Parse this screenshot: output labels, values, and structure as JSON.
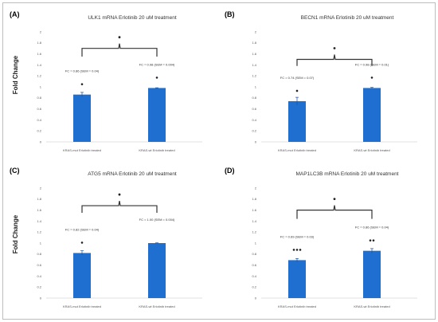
{
  "figure_ylabel": "Fold Change",
  "colors": {
    "bar": "#1f6fd0",
    "axis": "#d9d9d9",
    "bracket": "#333333"
  },
  "chart_data": [
    {
      "panel": "(A)",
      "type": "bar",
      "title": "ULK1 mRNA Erlotinib 20 uM treatment",
      "categories": [
        "KRAS-mut Erlotinib treated",
        "KRAS-wt Erlotinib treated"
      ],
      "values": [
        0.86,
        0.98
      ],
      "errors": [
        0.04,
        0.004
      ],
      "labels": [
        "FC = 0.86 (SEM = 0.04)",
        "FC = 0.98 (SEM = 0.004)"
      ],
      "bar_markers": [
        "•",
        "•"
      ],
      "bracket_marker": "•",
      "bracket_top": 1.7,
      "bracket_legs": 1.55,
      "ylim": [
        0,
        2
      ],
      "yticks": [
        "0",
        "0.2",
        "0.4",
        "0.6",
        "0.8",
        "1",
        "1.2",
        "1.4",
        "1.6",
        "1.8",
        "2"
      ]
    },
    {
      "panel": "(B)",
      "type": "bar",
      "title": "BECN1 mRNA Erlotinib 20 uM  treatment",
      "categories": [
        "KRAS-mut Erlotinib treated",
        "KRAS-wt Erlotinib treated"
      ],
      "values": [
        0.74,
        0.98
      ],
      "errors": [
        0.07,
        0.01
      ],
      "labels": [
        "FC = 0.74 (SEM = 0.07)",
        "FC = 0.98 (SEM = 0.01)"
      ],
      "bar_markers": [
        "•",
        "•"
      ],
      "bracket_marker": "•",
      "bracket_top": 1.5,
      "bracket_legs": 1.38,
      "ylim": [
        0,
        2
      ],
      "yticks": [
        "0",
        "0.2",
        "0.4",
        "0.6",
        "0.8",
        "1",
        "1.2",
        "1.4",
        "1.6",
        "1.8",
        "2"
      ]
    },
    {
      "panel": "(C)",
      "type": "bar",
      "title": "ATG5 mRNA Erlotinib 20 uM treatment",
      "categories": [
        "KRAS-mut Erlotinib treated",
        "KRAS-wt Erlotinib treated"
      ],
      "values": [
        0.82,
        1.0
      ],
      "errors": [
        0.04,
        0.004
      ],
      "labels": [
        "FC = 0.82 (SEM = 0.04)",
        "FC = 1.00 (SEM = 0.004)"
      ],
      "bar_markers": [
        "•",
        ""
      ],
      "bracket_marker": "•",
      "bracket_top": 1.68,
      "bracket_legs": 1.55,
      "ylim": [
        0,
        2
      ],
      "yticks": [
        "0",
        "0.2",
        "0.4",
        "0.6",
        "0.8",
        "1",
        "1.2",
        "1.4",
        "1.6",
        "1.8",
        "2"
      ]
    },
    {
      "panel": "(D)",
      "type": "bar",
      "title": "MAP1LC3B mRNA Erlotinib 20 uM treatment",
      "categories": [
        "KRAS-mut Erlotinib treated",
        "KRAS-wt Erlotinib treated"
      ],
      "values": [
        0.69,
        0.86
      ],
      "errors": [
        0.03,
        0.04
      ],
      "labels": [
        "FC = 0.69 (SEM = 0.03)",
        "FC = 0.86 (SEM = 0.04)"
      ],
      "bar_markers": [
        "•••",
        "••"
      ],
      "bracket_marker": "•",
      "bracket_top": 1.6,
      "bracket_legs": 1.44,
      "ylim": [
        0,
        2
      ],
      "yticks": [
        "0",
        "0.2",
        "0.4",
        "0.6",
        "0.8",
        "1",
        "1.2",
        "1.4",
        "1.6",
        "1.8",
        "2"
      ]
    }
  ]
}
